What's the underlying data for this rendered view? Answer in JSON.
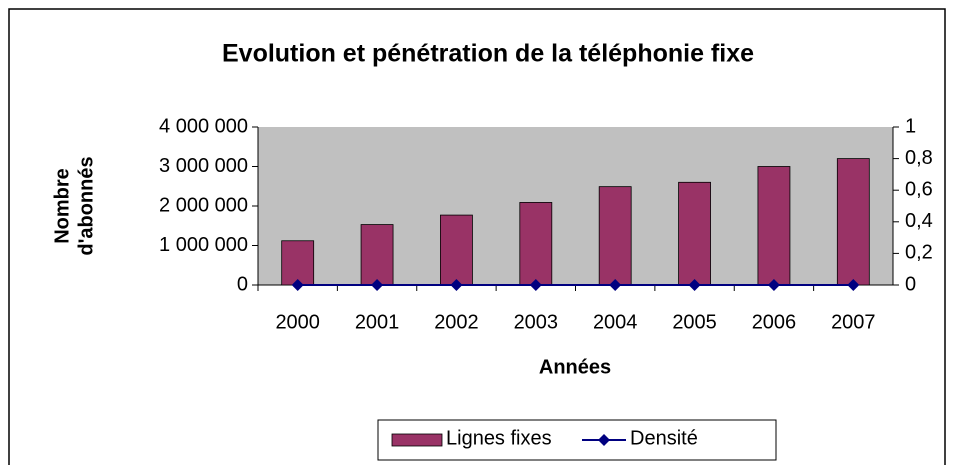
{
  "chart_data": {
    "type": "bar",
    "title": "Evolution et pénétration de la téléphonie fixe",
    "ylabel": [
      "Nombre",
      "d'abonnés"
    ],
    "xlabel": "Années",
    "categories": [
      "2000",
      "2001",
      "2002",
      "2003",
      "2004",
      "2005",
      "2006",
      "2007"
    ],
    "series": [
      {
        "name": "Lignes fixes",
        "color": "#993366",
        "values": [
          1120000,
          1530000,
          1770000,
          2090000,
          2490000,
          2600000,
          3000000,
          3200000
        ]
      },
      {
        "name": "Densité",
        "color": "#000080",
        "type": "line",
        "axis": "y2",
        "values": [
          0,
          0,
          0,
          0,
          0,
          0,
          0,
          0
        ]
      }
    ],
    "ylim": [
      0,
      4000000
    ],
    "yticks": [
      0,
      {
        "value": 1000000,
        "label": "1 000 000"
      },
      {
        "value": 2000000,
        "label": "2 000 000"
      },
      {
        "value": 3000000,
        "label": "3 000 000"
      },
      {
        "value": 4000000,
        "label": "4 000 000"
      }
    ],
    "y2lim": [
      0,
      1
    ],
    "y2ticks": [
      0,
      {
        "value": 0.2,
        "label": "0,2"
      },
      {
        "value": 0.4,
        "label": "0,4"
      },
      {
        "value": 0.6,
        "label": "0,6"
      },
      {
        "value": 0.8,
        "label": "0,8"
      },
      1
    ],
    "legend": "bottom"
  }
}
